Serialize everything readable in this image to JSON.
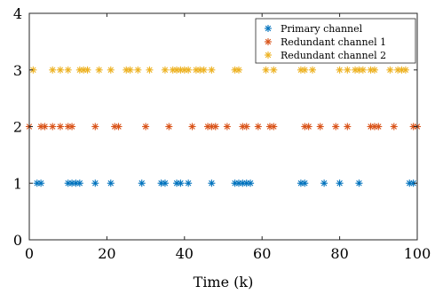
{
  "chart_data": {
    "type": "scatter",
    "title": "",
    "xlabel": "Time (k)",
    "ylabel": "",
    "xlim": [
      0,
      100
    ],
    "ylim": [
      0,
      4
    ],
    "xticks": [
      0,
      20,
      40,
      60,
      80,
      100
    ],
    "yticks": [
      0,
      1,
      2,
      3,
      4
    ],
    "grid": false,
    "legend_position": "top-right",
    "marker": "*",
    "series": [
      {
        "name": "Primary channel",
        "color": "#0072BD",
        "y": 1,
        "x": [
          2,
          3,
          10,
          11,
          12,
          13,
          17,
          21,
          29,
          34,
          35,
          38,
          39,
          41,
          47,
          53,
          54,
          55,
          56,
          57,
          70,
          71,
          76,
          80,
          85,
          98,
          99
        ]
      },
      {
        "name": "Redundant channel 1",
        "color": "#D95319",
        "y": 2,
        "x": [
          0,
          3,
          4,
          6,
          8,
          10,
          11,
          17,
          22,
          23,
          30,
          36,
          42,
          46,
          47,
          48,
          51,
          55,
          56,
          59,
          62,
          63,
          71,
          72,
          75,
          79,
          82,
          88,
          89,
          90,
          94,
          99,
          100
        ]
      },
      {
        "name": "Redundant channel 2",
        "color": "#EDB120",
        "y": 3,
        "x": [
          1,
          6,
          8,
          10,
          13,
          14,
          15,
          18,
          21,
          25,
          26,
          28,
          31,
          35,
          37,
          38,
          39,
          40,
          41,
          43,
          44,
          45,
          47,
          53,
          54,
          61,
          63,
          70,
          71,
          73,
          80,
          82,
          84,
          85,
          86,
          88,
          89,
          93,
          95,
          96,
          97
        ]
      }
    ]
  }
}
